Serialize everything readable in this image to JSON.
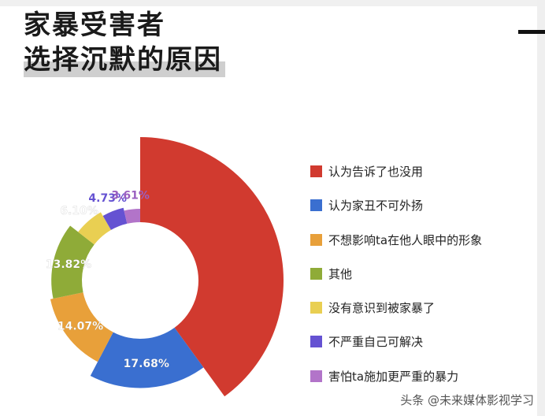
{
  "title_line1": "家暴受害者",
  "title_line2": "选择沉默的原因",
  "watermark": "头条 @未来媒体影视学习",
  "chart_data": {
    "type": "pie",
    "title": "家暴受害者 选择沉默的原因",
    "start_angle_deg": 0,
    "direction": "clockwise",
    "categories": [
      "认为告诉了也没用",
      "认为家丑不可外扬",
      "不想影响ta在他人眼中的形象",
      "其他",
      "没有意识到被家暴了",
      "不严重自己可解决",
      "害怕ta施加更严重的暴力"
    ],
    "values": [
      39.98,
      17.68,
      14.07,
      13.82,
      6.1,
      4.73,
      3.61
    ],
    "radius_relative": [
      1.0,
      0.75,
      0.64,
      0.62,
      0.55,
      0.52,
      0.5
    ],
    "labels": [
      "",
      "17.68%",
      "14.07%",
      "13.82%",
      "6.10%",
      "4.73%",
      "3.61%"
    ],
    "colors": [
      "#d13a2f",
      "#3a6fd0",
      "#e8a03a",
      "#8fab38",
      "#e9cf52",
      "#6552d2",
      "#b274c9"
    ],
    "label_colors": [
      "#ffffff",
      "#ffffff",
      "#ffffff",
      "#ffffff",
      "#ffffff",
      "#6552d2",
      "#9a5fc0"
    ],
    "legend_position": "right"
  }
}
